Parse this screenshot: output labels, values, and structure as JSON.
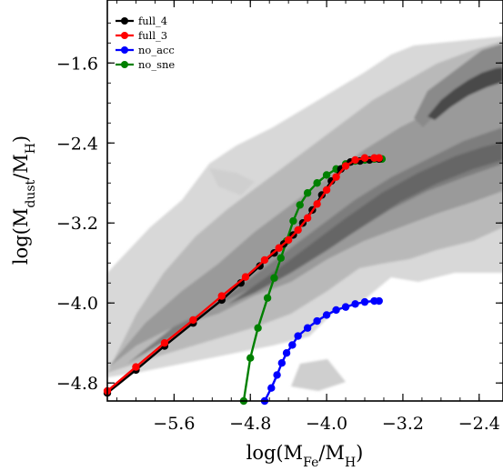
{
  "chart_data": {
    "type": "line",
    "xlabel": "log(M_Fe/M_H)",
    "ylabel": "log(M_dust/M_H)",
    "xlim": [
      -6.3,
      -2.15
    ],
    "ylim": [
      -4.98,
      -0.97
    ],
    "xticks": [
      -5.6,
      -4.8,
      -4.0,
      -3.2,
      -2.4
    ],
    "yticks": [
      -4.8,
      -4.0,
      -3.2,
      -2.4,
      -1.6
    ],
    "xtick_labels": [
      "−5.6",
      "−4.8",
      "−4.0",
      "−3.2",
      "−2.4"
    ],
    "ytick_labels": [
      "−4.8",
      "−4.0",
      "−3.2",
      "−2.4",
      "−1.6"
    ],
    "legend_position": "top-left",
    "grid": false,
    "series": [
      {
        "name": "full_4",
        "color": "#000000",
        "x": [
          -6.3,
          -6.0,
          -5.7,
          -5.4,
          -5.1,
          -4.9,
          -4.7,
          -4.55,
          -4.45,
          -4.35,
          -4.25,
          -4.15,
          -4.05,
          -3.95,
          -3.85,
          -3.75,
          -3.65,
          -3.55,
          -3.45
        ],
        "y": [
          -4.9,
          -4.67,
          -4.43,
          -4.2,
          -3.97,
          -3.8,
          -3.63,
          -3.5,
          -3.41,
          -3.32,
          -3.2,
          -3.07,
          -2.92,
          -2.78,
          -2.66,
          -2.59,
          -2.58,
          -2.57,
          -2.56
        ]
      },
      {
        "name": "full_3",
        "color": "#ff0000",
        "x": [
          -6.3,
          -6.0,
          -5.7,
          -5.4,
          -5.1,
          -4.85,
          -4.65,
          -4.5,
          -4.4,
          -4.3,
          -4.2,
          -4.1,
          -4.0,
          -3.9,
          -3.8,
          -3.7,
          -3.6,
          -3.5,
          -3.45
        ],
        "y": [
          -4.88,
          -4.64,
          -4.4,
          -4.17,
          -3.93,
          -3.74,
          -3.57,
          -3.45,
          -3.37,
          -3.27,
          -3.15,
          -3.01,
          -2.87,
          -2.74,
          -2.63,
          -2.57,
          -2.55,
          -2.55,
          -2.55
        ]
      },
      {
        "name": "no_acc",
        "color": "#0000ff",
        "x": [
          -4.65,
          -4.58,
          -4.52,
          -4.47,
          -4.42,
          -4.36,
          -4.3,
          -4.2,
          -4.1,
          -4.0,
          -3.9,
          -3.8,
          -3.7,
          -3.6,
          -3.5,
          -3.45
        ],
        "y": [
          -4.98,
          -4.85,
          -4.72,
          -4.6,
          -4.5,
          -4.42,
          -4.33,
          -4.25,
          -4.18,
          -4.12,
          -4.07,
          -4.04,
          -4.01,
          -3.99,
          -3.98,
          -3.98
        ]
      },
      {
        "name": "no_sne",
        "color": "#008000",
        "x": [
          -4.87,
          -4.8,
          -4.72,
          -4.62,
          -4.55,
          -4.48,
          -4.42,
          -4.35,
          -4.28,
          -4.2,
          -4.1,
          -4.0,
          -3.9,
          -3.8,
          -3.7,
          -3.6,
          -3.5,
          -3.42
        ],
        "y": [
          -4.98,
          -4.55,
          -4.25,
          -3.95,
          -3.75,
          -3.55,
          -3.38,
          -3.18,
          -3.02,
          -2.9,
          -2.8,
          -2.72,
          -2.66,
          -2.61,
          -2.58,
          -2.57,
          -2.56,
          -2.56
        ]
      }
    ]
  }
}
